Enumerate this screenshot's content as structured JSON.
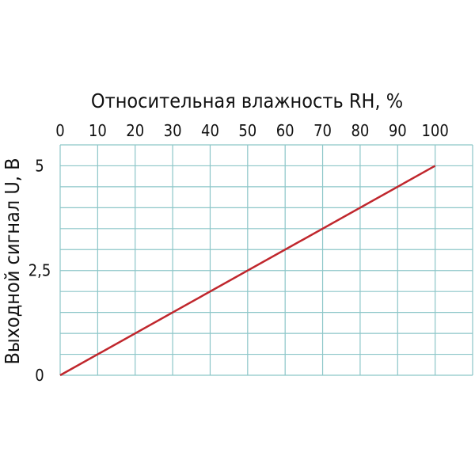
{
  "chart_data": {
    "type": "line",
    "title": "Относительная влажность RH, %",
    "xlabel": "Относительная влажность RH, %",
    "ylabel": "Выходной сигнал U, В",
    "x_ticks": [
      "0",
      "10",
      "20",
      "30",
      "40",
      "50",
      "60",
      "70",
      "80",
      "90",
      "100"
    ],
    "y_ticks": [
      {
        "value": 0,
        "label": "0"
      },
      {
        "value": 2.5,
        "label": "2,5"
      },
      {
        "value": 5,
        "label": "5"
      }
    ],
    "xlim": [
      0,
      110
    ],
    "ylim": [
      0,
      5.5
    ],
    "x_axis_position": "top",
    "grid": true,
    "grid_x_step": 10,
    "grid_y_step": 0.5,
    "series": [
      {
        "x": [
          0,
          100
        ],
        "y": [
          0,
          5
        ]
      }
    ],
    "colors": {
      "line": "#c0272d",
      "grid": "#8cc6c8",
      "text": "#111111"
    }
  }
}
